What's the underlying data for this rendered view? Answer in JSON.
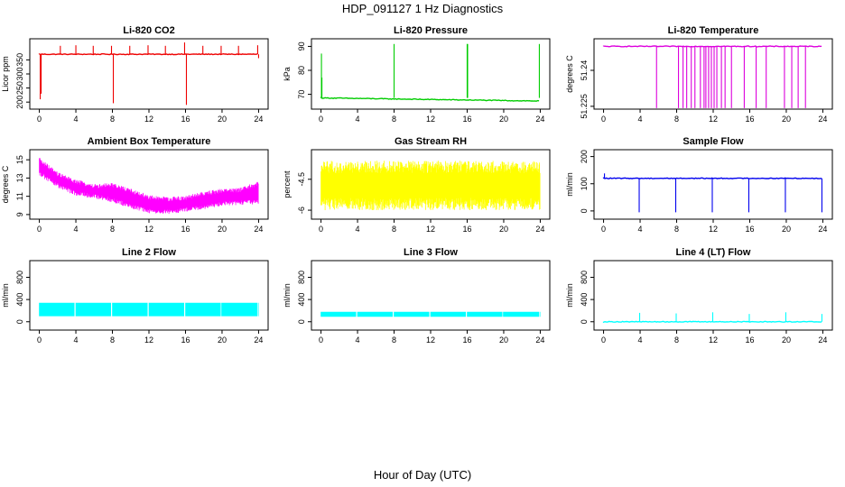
{
  "figure": {
    "title": "HDP_091127  1 Hz Diagnostics",
    "xlabel": "Hour of Day (UTC)"
  },
  "chart_data": [
    {
      "type": "line",
      "title": "Li-820 CO2",
      "ylabel": "Licor ppm",
      "color": "#ee0000",
      "xlim": [
        0,
        24
      ],
      "ylim": [
        185,
        415
      ],
      "xticks": [
        0,
        4,
        8,
        12,
        16,
        20,
        24
      ],
      "yticks": [
        200,
        250,
        300,
        350
      ],
      "baseline": 370,
      "spikes": [
        [
          0.1,
          210
        ],
        [
          0.2,
          230
        ],
        [
          2.3,
          400
        ],
        [
          4.0,
          402
        ],
        [
          5.9,
          400
        ],
        [
          7.9,
          400
        ],
        [
          8.1,
          196
        ],
        [
          9.9,
          400
        ],
        [
          11.9,
          402
        ],
        [
          13.8,
          400
        ],
        [
          15.9,
          412
        ],
        [
          16.1,
          190
        ],
        [
          17.9,
          400
        ],
        [
          19.9,
          400
        ],
        [
          21.8,
          400
        ],
        [
          23.9,
          402
        ],
        [
          24.0,
          356
        ]
      ]
    },
    {
      "type": "line",
      "title": "Li-820 Pressure",
      "ylabel": "kPa",
      "color": "#00cc00",
      "xlim": [
        0,
        24
      ],
      "ylim": [
        65,
        92
      ],
      "xticks": [
        0,
        4,
        8,
        12,
        16,
        20,
        24
      ],
      "yticks": [
        70,
        80,
        90
      ],
      "baseline": [
        68.5,
        67.2
      ],
      "spikes": [
        [
          0.05,
          87
        ],
        [
          0.1,
          77
        ],
        [
          8.0,
          91
        ],
        [
          16.0,
          91
        ],
        [
          16.05,
          91
        ],
        [
          23.9,
          91
        ]
      ]
    },
    {
      "type": "line",
      "title": "Li-820 Temperature",
      "ylabel": "degrees C",
      "color": "#dd00dd",
      "xlim": [
        0,
        24
      ],
      "ylim": [
        51.225,
        51.252
      ],
      "xticks": [
        0,
        4,
        8,
        12,
        16,
        20,
        24
      ],
      "yticks": [
        51.225,
        51.24
      ],
      "baseline": 51.25,
      "drops": [
        5.8,
        8.2,
        8.7,
        9.1,
        9.6,
        10.0,
        10.6,
        11.0,
        11.2,
        11.5,
        11.8,
        12.1,
        12.4,
        12.9,
        13.3,
        14.0,
        15.4,
        16.7,
        17.8,
        19.8,
        20.6,
        21.3,
        22.1
      ]
    },
    {
      "type": "line",
      "title": "Ambient Box Temperature",
      "ylabel": "degrees C",
      "color": "#ff00ff",
      "xlim": [
        0,
        24
      ],
      "ylim": [
        8.8,
        15.8
      ],
      "xticks": [
        0,
        4,
        8,
        12,
        16,
        20,
        24
      ],
      "yticks": [
        9,
        11,
        13,
        15
      ],
      "envelope": [
        [
          0,
          15.0,
          13.5
        ],
        [
          2,
          13.4,
          12.2
        ],
        [
          4,
          12.6,
          11.3
        ],
        [
          6,
          12.1,
          11.0
        ],
        [
          8,
          12.2,
          10.6
        ],
        [
          10,
          11.6,
          9.9
        ],
        [
          12,
          10.9,
          9.4
        ],
        [
          14,
          10.7,
          9.3
        ],
        [
          16,
          10.8,
          9.5
        ],
        [
          18,
          11.3,
          9.8
        ],
        [
          20,
          11.6,
          10.2
        ],
        [
          22,
          11.7,
          10.3
        ],
        [
          24,
          12.4,
          10.4
        ]
      ]
    },
    {
      "type": "line",
      "title": "Gas Stream RH",
      "ylabel": "percent",
      "color": "#ffff00",
      "xlim": [
        0,
        24
      ],
      "ylim": [
        -6.3,
        -3.2
      ],
      "xticks": [
        0,
        4,
        8,
        12,
        16,
        20,
        24
      ],
      "yticks": [
        -6.0,
        -4.5
      ],
      "band": [
        -6.0,
        -3.6
      ]
    },
    {
      "type": "line",
      "title": "Sample Flow",
      "ylabel": "ml/min",
      "color": "#0000ee",
      "xlim": [
        0,
        24
      ],
      "ylim": [
        -20,
        215
      ],
      "xticks": [
        0,
        4,
        8,
        12,
        16,
        20,
        24
      ],
      "yticks": [
        0,
        100,
        200
      ],
      "baseline": 120,
      "spikes": [
        [
          0.1,
          138
        ],
        [
          3.9,
          -5
        ],
        [
          7.9,
          -5
        ],
        [
          11.9,
          -5
        ],
        [
          15.9,
          -5
        ],
        [
          19.9,
          -5
        ],
        [
          23.9,
          -5
        ]
      ]
    },
    {
      "type": "line",
      "title": "Line 2 Flow",
      "ylabel": "ml/min",
      "color": "#00ffff",
      "xlim": [
        0,
        24
      ],
      "ylim": [
        -100,
        1050
      ],
      "xticks": [
        0,
        4,
        8,
        12,
        16,
        20,
        24
      ],
      "yticks": [
        0,
        400,
        800
      ],
      "band": [
        100,
        340
      ],
      "gaps": [
        3.9,
        7.9,
        11.9,
        15.9,
        19.9,
        23.9
      ]
    },
    {
      "type": "line",
      "title": "Line 3 Flow",
      "ylabel": "ml/min",
      "color": "#00ffff",
      "xlim": [
        0,
        24
      ],
      "ylim": [
        -100,
        1050
      ],
      "xticks": [
        0,
        4,
        8,
        12,
        16,
        20,
        24
      ],
      "yticks": [
        0,
        400,
        800
      ],
      "band": [
        90,
        180
      ],
      "gaps": [
        3.9,
        7.9,
        11.9,
        15.9,
        19.9,
        23.9
      ]
    },
    {
      "type": "line",
      "title": "Line 4 (LT) Flow",
      "ylabel": "ml/min",
      "color": "#00ffff",
      "xlim": [
        0,
        24
      ],
      "ylim": [
        -100,
        1050
      ],
      "xticks": [
        0,
        4,
        8,
        12,
        16,
        20,
        24
      ],
      "yticks": [
        0,
        400,
        800
      ],
      "baseline": 0,
      "spikes": [
        [
          3.95,
          160
        ],
        [
          7.95,
          150
        ],
        [
          11.95,
          170
        ],
        [
          15.95,
          140
        ],
        [
          19.95,
          170
        ],
        [
          23.9,
          140
        ]
      ]
    }
  ]
}
